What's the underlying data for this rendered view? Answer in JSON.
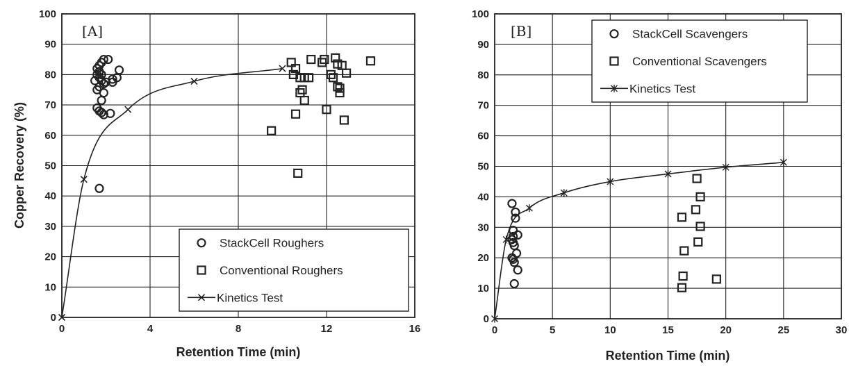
{
  "chart_data": [
    {
      "type": "scatter",
      "panel_label": "[A]",
      "xlabel": "Retention Time (min)",
      "ylabel": "Copper Recovery (%)",
      "xlim": [
        0,
        16
      ],
      "ylim": [
        0,
        100
      ],
      "x_ticks": [
        0,
        4,
        8,
        12,
        16
      ],
      "y_ticks": [
        0,
        10,
        20,
        30,
        40,
        50,
        60,
        70,
        80,
        90,
        100
      ],
      "grid": true,
      "legend_position": "bottom-right",
      "series": [
        {
          "name": "StackCell Roughers",
          "marker": "circle",
          "points": [
            [
              1.7,
              42.5
            ],
            [
              1.6,
              69
            ],
            [
              1.7,
              68
            ],
            [
              1.8,
              67.5
            ],
            [
              1.9,
              66.8
            ],
            [
              2.2,
              67.2
            ],
            [
              1.8,
              71.5
            ],
            [
              1.9,
              74
            ],
            [
              1.6,
              75
            ],
            [
              1.7,
              76
            ],
            [
              1.5,
              78
            ],
            [
              1.6,
              80
            ],
            [
              1.7,
              79
            ],
            [
              1.8,
              78
            ],
            [
              1.9,
              77
            ],
            [
              2.0,
              77.5
            ],
            [
              1.6,
              82
            ],
            [
              1.7,
              83
            ],
            [
              1.8,
              84
            ],
            [
              1.9,
              85
            ],
            [
              2.1,
              85
            ],
            [
              1.7,
              81
            ],
            [
              1.8,
              80
            ],
            [
              2.3,
              77.5
            ],
            [
              2.3,
              78.5
            ],
            [
              2.5,
              79
            ],
            [
              2.6,
              81.5
            ]
          ]
        },
        {
          "name": "Conventional Roughers",
          "marker": "square",
          "points": [
            [
              9.5,
              61.5
            ],
            [
              10.7,
              47.5
            ],
            [
              10.6,
              67
            ],
            [
              10.4,
              84
            ],
            [
              10.5,
              80
            ],
            [
              10.6,
              82
            ],
            [
              10.8,
              79
            ],
            [
              10.8,
              74
            ],
            [
              10.9,
              75
            ],
            [
              11.0,
              71.5
            ],
            [
              11.0,
              79
            ],
            [
              11.2,
              79
            ],
            [
              11.3,
              85
            ],
            [
              11.8,
              84
            ],
            [
              11.9,
              85
            ],
            [
              12.0,
              68.5
            ],
            [
              12.2,
              80
            ],
            [
              12.3,
              79
            ],
            [
              12.4,
              85.5
            ],
            [
              12.5,
              83.5
            ],
            [
              12.5,
              76
            ],
            [
              12.6,
              74
            ],
            [
              12.6,
              75.5
            ],
            [
              12.7,
              83
            ],
            [
              12.8,
              65
            ],
            [
              12.9,
              80.5
            ],
            [
              14.0,
              84.5
            ]
          ]
        },
        {
          "name": "Kinetics Test",
          "marker": "x",
          "line": true,
          "points": [
            [
              0,
              0
            ],
            [
              1,
              45.5
            ],
            [
              3,
              68.5
            ],
            [
              6,
              77.8
            ],
            [
              10,
              82
            ]
          ]
        }
      ]
    },
    {
      "type": "scatter",
      "panel_label": "[B]",
      "xlabel": "Retention Time (min)",
      "ylabel": "",
      "xlim": [
        0,
        30
      ],
      "ylim": [
        0,
        100
      ],
      "x_ticks": [
        0,
        5,
        10,
        15,
        20,
        25,
        30
      ],
      "y_ticks": [
        0,
        10,
        20,
        30,
        40,
        50,
        60,
        70,
        80,
        90,
        100
      ],
      "grid": true,
      "legend_position": "top-right",
      "series": [
        {
          "name": "StackCell Scavengers",
          "marker": "circle",
          "points": [
            [
              1.5,
              37.8
            ],
            [
              1.8,
              35
            ],
            [
              1.8,
              33
            ],
            [
              1.6,
              29
            ],
            [
              1.6,
              27
            ],
            [
              2.0,
              27.5
            ],
            [
              1.5,
              26
            ],
            [
              1.6,
              25
            ],
            [
              1.7,
              24
            ],
            [
              1.9,
              21.5
            ],
            [
              1.5,
              20
            ],
            [
              1.6,
              19.5
            ],
            [
              1.7,
              18.5
            ],
            [
              2.0,
              16
            ],
            [
              1.7,
              11.5
            ]
          ]
        },
        {
          "name": "Conventional Scavengers",
          "marker": "square",
          "points": [
            [
              17.5,
              46
            ],
            [
              17.8,
              40
            ],
            [
              17.4,
              35.8
            ],
            [
              16.2,
              33.3
            ],
            [
              17.8,
              30.3
            ],
            [
              17.6,
              25.2
            ],
            [
              16.4,
              22.3
            ],
            [
              16.3,
              14
            ],
            [
              16.2,
              10.2
            ],
            [
              19.2,
              13
            ]
          ]
        },
        {
          "name": "Kinetics Test",
          "marker": "asterisk",
          "line": true,
          "points": [
            [
              0,
              0
            ],
            [
              1,
              26
            ],
            [
              3,
              36.3
            ],
            [
              6,
              41.3
            ],
            [
              10,
              45
            ],
            [
              15,
              47.5
            ],
            [
              20,
              49.7
            ],
            [
              25,
              51.3
            ]
          ]
        }
      ]
    }
  ]
}
